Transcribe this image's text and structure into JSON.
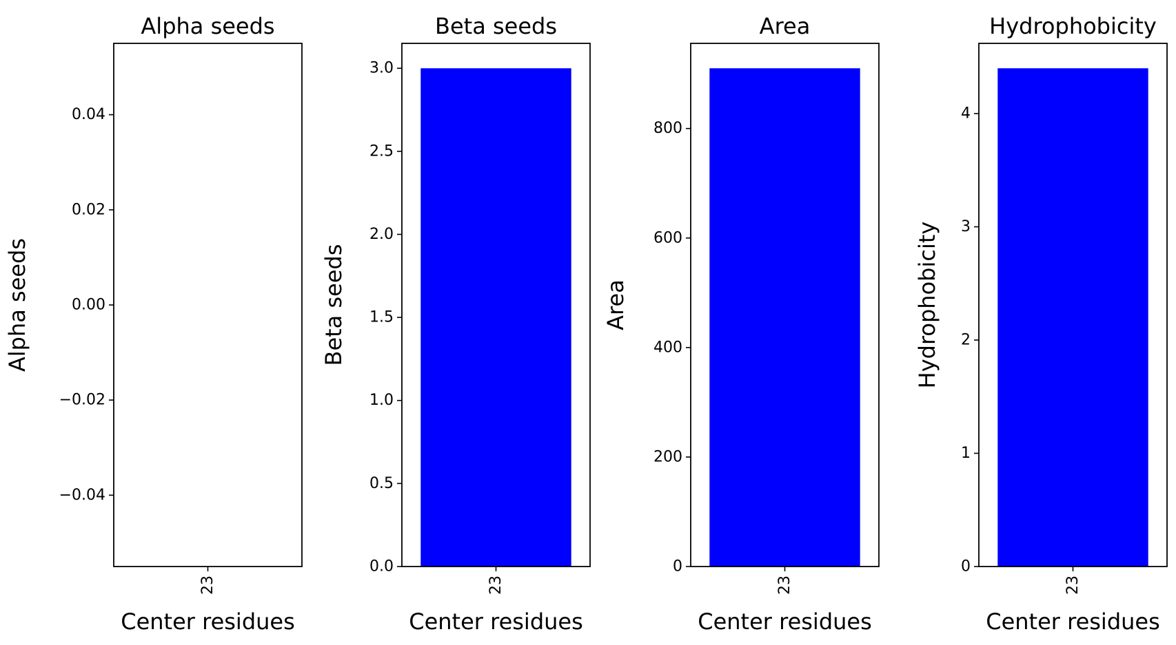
{
  "chart_data": [
    {
      "type": "bar",
      "title": "Alpha seeds",
      "xlabel": "Center residues",
      "ylabel": "Alpha seeds",
      "categories": [
        "23"
      ],
      "values": [
        0
      ],
      "ylim": [
        -0.055,
        0.055
      ],
      "yticks": [
        -0.04,
        -0.02,
        0.0,
        0.02,
        0.04
      ],
      "ytick_labels": [
        "−0.04",
        "−0.02",
        "0.00",
        "0.02",
        "0.04"
      ],
      "bar_color": "#0000ff",
      "grid": false
    },
    {
      "type": "bar",
      "title": "Beta seeds",
      "xlabel": "Center residues",
      "ylabel": "Beta seeds",
      "categories": [
        "23"
      ],
      "values": [
        3.0
      ],
      "ylim": [
        0,
        3.15
      ],
      "yticks": [
        0.0,
        0.5,
        1.0,
        1.5,
        2.0,
        2.5,
        3.0
      ],
      "ytick_labels": [
        "0.0",
        "0.5",
        "1.0",
        "1.5",
        "2.0",
        "2.5",
        "3.0"
      ],
      "bar_color": "#0000ff",
      "grid": false
    },
    {
      "type": "bar",
      "title": "Area",
      "xlabel": "Center residues",
      "ylabel": "Area",
      "categories": [
        "23"
      ],
      "values": [
        910
      ],
      "ylim": [
        0,
        955.5
      ],
      "yticks": [
        0,
        200,
        400,
        600,
        800
      ],
      "ytick_labels": [
        "0",
        "200",
        "400",
        "600",
        "800"
      ],
      "bar_color": "#0000ff",
      "grid": false
    },
    {
      "type": "bar",
      "title": "Hydrophobicity",
      "xlabel": "Center residues",
      "ylabel": "Hydrophobicity",
      "categories": [
        "23"
      ],
      "values": [
        4.4
      ],
      "ylim": [
        0,
        4.62
      ],
      "yticks": [
        0,
        1,
        2,
        3,
        4
      ],
      "ytick_labels": [
        "0",
        "1",
        "2",
        "3",
        "4"
      ],
      "bar_color": "#0000ff",
      "grid": false
    }
  ]
}
